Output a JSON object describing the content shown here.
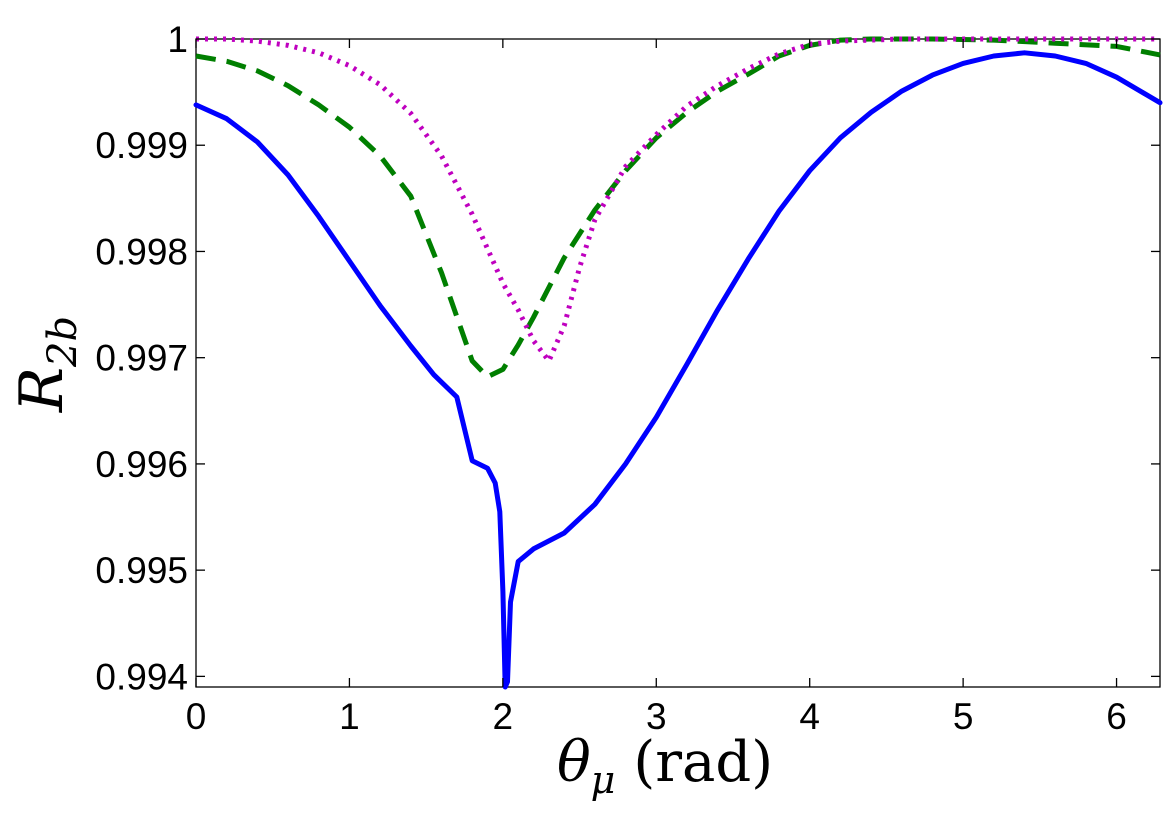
{
  "chart_data": {
    "type": "line",
    "xlabel_symbol": "θ",
    "xlabel_subscript": "μ",
    "xlabel_unit": "(rad)",
    "ylabel_symbol": "R",
    "ylabel_subscript": "2b",
    "xlim": [
      0,
      6.2832
    ],
    "ylim": [
      0.9939,
      1.0
    ],
    "xticks": [
      0,
      1,
      2,
      3,
      4,
      5,
      6
    ],
    "xtick_labels": [
      "0",
      "1",
      "2",
      "3",
      "4",
      "5",
      "6"
    ],
    "yticks": [
      0.994,
      0.995,
      0.996,
      0.997,
      0.998,
      0.999,
      1.0
    ],
    "ytick_labels": [
      "0.994",
      "0.995",
      "0.996",
      "0.997",
      "0.998",
      "0.999",
      "1"
    ],
    "grid": false,
    "legend": false,
    "series": [
      {
        "color": "#0000ff",
        "style": "solid",
        "points": [
          [
            0,
            0.99938
          ],
          [
            0.2,
            0.99925
          ],
          [
            0.4,
            0.99903
          ],
          [
            0.6,
            0.99872
          ],
          [
            0.8,
            0.99833
          ],
          [
            1.0,
            0.99791
          ],
          [
            1.2,
            0.99749
          ],
          [
            1.4,
            0.99711
          ],
          [
            1.55,
            0.99684
          ],
          [
            1.7,
            0.99663
          ],
          [
            1.8,
            0.99603
          ],
          [
            1.9,
            0.99596
          ],
          [
            1.95,
            0.99582
          ],
          [
            1.98,
            0.99555
          ],
          [
            2.0,
            0.9948
          ],
          [
            2.015,
            0.9939
          ],
          [
            2.03,
            0.99395
          ],
          [
            2.05,
            0.9947
          ],
          [
            2.1,
            0.99508
          ],
          [
            2.2,
            0.9952
          ],
          [
            2.4,
            0.99535
          ],
          [
            2.6,
            0.99562
          ],
          [
            2.8,
            0.996
          ],
          [
            3.0,
            0.99644
          ],
          [
            3.2,
            0.99694
          ],
          [
            3.4,
            0.99745
          ],
          [
            3.6,
            0.99793
          ],
          [
            3.8,
            0.99838
          ],
          [
            4.0,
            0.99876
          ],
          [
            4.2,
            0.99907
          ],
          [
            4.4,
            0.99931
          ],
          [
            4.6,
            0.99951
          ],
          [
            4.8,
            0.99966
          ],
          [
            5.0,
            0.99977
          ],
          [
            5.2,
            0.99984
          ],
          [
            5.4,
            0.99987
          ],
          [
            5.6,
            0.99984
          ],
          [
            5.8,
            0.99977
          ],
          [
            6.0,
            0.99964
          ],
          [
            6.2832,
            0.9994
          ]
        ]
      },
      {
        "color": "#007f00",
        "style": "dashed",
        "points": [
          [
            0,
            0.99984
          ],
          [
            0.2,
            0.99979
          ],
          [
            0.4,
            0.9997
          ],
          [
            0.6,
            0.99956
          ],
          [
            0.8,
            0.99938
          ],
          [
            1.0,
            0.99917
          ],
          [
            1.2,
            0.9989
          ],
          [
            1.4,
            0.99852
          ],
          [
            1.6,
            0.9978
          ],
          [
            1.8,
            0.99697
          ],
          [
            1.9,
            0.99682
          ],
          [
            2.0,
            0.99689
          ],
          [
            2.1,
            0.99712
          ],
          [
            2.2,
            0.99738
          ],
          [
            2.4,
            0.99794
          ],
          [
            2.6,
            0.99839
          ],
          [
            2.8,
            0.99876
          ],
          [
            3.0,
            0.99907
          ],
          [
            3.2,
            0.99931
          ],
          [
            3.4,
            0.99951
          ],
          [
            3.6,
            0.99967
          ],
          [
            3.8,
            0.99984
          ],
          [
            4.0,
            0.99994
          ],
          [
            4.2,
            0.99999
          ],
          [
            4.4,
            1.0
          ],
          [
            4.8,
            1.0
          ],
          [
            5.2,
            0.99999
          ],
          [
            5.6,
            0.99996
          ],
          [
            6.0,
            0.99993
          ],
          [
            6.2832,
            0.99985
          ]
        ]
      },
      {
        "color": "#bf00bf",
        "style": "dotted",
        "points": [
          [
            0,
            1.0
          ],
          [
            0.2,
            1.0
          ],
          [
            0.4,
            0.99998
          ],
          [
            0.6,
            0.99994
          ],
          [
            0.8,
            0.99987
          ],
          [
            1.0,
            0.99975
          ],
          [
            1.2,
            0.99957
          ],
          [
            1.4,
            0.9993
          ],
          [
            1.6,
            0.9989
          ],
          [
            1.8,
            0.99835
          ],
          [
            2.0,
            0.9977
          ],
          [
            2.1,
            0.99745
          ],
          [
            2.2,
            0.99716
          ],
          [
            2.3,
            0.99697
          ],
          [
            2.4,
            0.9973
          ],
          [
            2.5,
            0.99785
          ],
          [
            2.6,
            0.9983
          ],
          [
            2.8,
            0.9988
          ],
          [
            3.0,
            0.9991
          ],
          [
            3.2,
            0.99937
          ],
          [
            3.4,
            0.99956
          ],
          [
            3.6,
            0.99972
          ],
          [
            3.8,
            0.99986
          ],
          [
            4.0,
            0.99995
          ],
          [
            4.2,
            0.99998
          ],
          [
            4.6,
            1.0
          ],
          [
            5.2,
            1.0
          ],
          [
            5.8,
            1.0
          ],
          [
            6.2832,
            1.0
          ]
        ]
      }
    ]
  }
}
